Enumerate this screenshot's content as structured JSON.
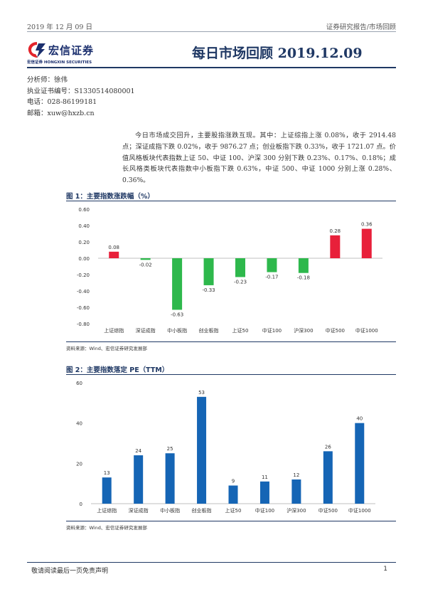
{
  "header": {
    "date": "2019 年 12 月 09 日",
    "category": "证券研究报告/市场回顾"
  },
  "logo": {
    "name_cn": "宏信证券",
    "name_en": "宏信证券 HONGXIN SECURITIES",
    "colors": {
      "red": "#e3242b",
      "blue": "#1b2f6e"
    }
  },
  "title": "每日市场回顾 2019.12.09",
  "author": {
    "analyst": "分析师：徐伟",
    "license": "执业证书编号：S1330514080001",
    "phone": "电话：028-86199181",
    "email": "邮箱：xuw@hxzb.cn"
  },
  "summary": "今日市场成交回升，主要股指涨跌互现。其中：上证综指上涨 0.08%，收于 2914.48 点；深证成指下跌 0.02%，收于 9876.27 点；创业板指下跌 0.33%，收于 1721.07 点。价值风格板块代表指数上证 50、中证 100、沪深 300 分别下跌 0.23%、0.17%、0.18%；成长风格类板块代表指数中小板指下跌 0.63%，中证 500、中证 1000 分别上涨 0.28%、0.36%。",
  "figures": {
    "fig1_title": "图 1：主要指数涨跌幅（%）",
    "fig1_source": "资料来源：Wind、宏信证券研究发展部",
    "fig2_title": "图 2：主要指数落定 PE（TTM）",
    "fig2_source": "资料来源：Wind、宏信证券研究发展部"
  },
  "chart_data": [
    {
      "type": "bar",
      "title": "图 1：主要指数涨跌幅（%）",
      "categories": [
        "上证综指",
        "深证成指",
        "中小板指",
        "创业板指",
        "上证50",
        "中证100",
        "沪深300",
        "中证500",
        "中证1000"
      ],
      "values": [
        0.08,
        -0.02,
        -0.63,
        -0.33,
        -0.23,
        -0.17,
        -0.18,
        0.28,
        0.36
      ],
      "value_labels": [
        "0.08",
        "-0.02",
        "-0.63",
        "-0.33",
        "-0.23",
        "-0.17",
        "-0.18",
        "0.28",
        "0.36"
      ],
      "ylim": [
        -0.8,
        0.6
      ],
      "yticks": [
        "0.60",
        "0.40",
        "0.20",
        "0.00",
        "-0.20",
        "-0.40",
        "-0.60",
        "-0.80"
      ],
      "colors": {
        "up": "#e8203a",
        "down": "#2eb84c"
      },
      "grid": false,
      "legend": "none"
    },
    {
      "type": "bar",
      "title": "图 2：主要指数落定 PE（TTM）",
      "categories": [
        "上证综指",
        "深证成指",
        "中小板指",
        "创业板指",
        "上证50",
        "中证100",
        "沪深300",
        "中证500",
        "中证1000"
      ],
      "values": [
        13,
        24,
        25,
        53,
        9,
        11,
        12,
        26,
        40
      ],
      "value_labels": [
        "13",
        "24",
        "25",
        "53",
        "9",
        "11",
        "12",
        "26",
        "40"
      ],
      "ylim": [
        0,
        60
      ],
      "yticks": [
        "60",
        "40",
        "20",
        "0"
      ],
      "colors": {
        "bar": "#1565b5"
      },
      "grid": false,
      "legend": "none"
    }
  ],
  "footer": {
    "disclaimer": "敬请阅读最后一页免责声明",
    "page": "1"
  }
}
